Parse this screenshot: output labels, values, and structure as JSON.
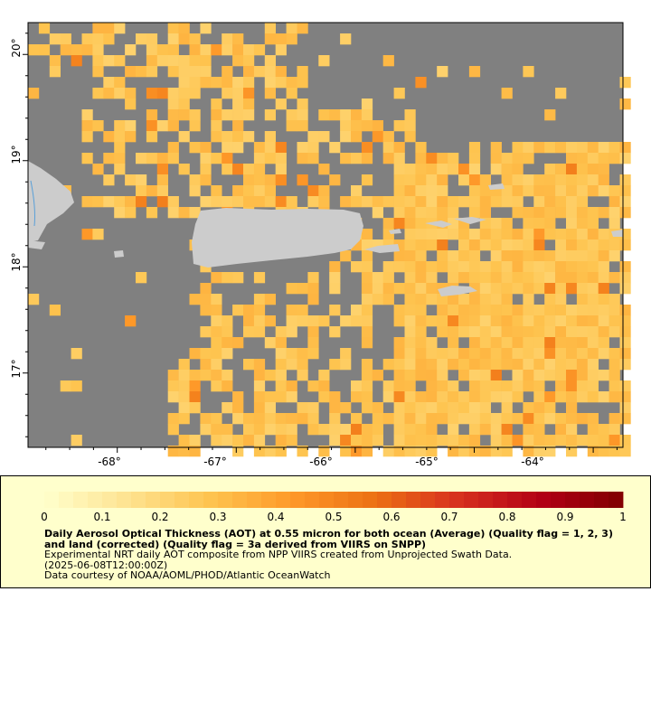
{
  "map": {
    "lon_range": [
      -68.75,
      -63.75
    ],
    "lat_range": [
      16.3,
      20.3
    ],
    "lon_ticks": [
      {
        "value": -68,
        "label": "-68°"
      },
      {
        "value": -67,
        "label": "-67°"
      },
      {
        "value": -66,
        "label": "-66°"
      },
      {
        "value": -65,
        "label": "-65°"
      },
      {
        "value": -64,
        "label": "-64°"
      }
    ],
    "lat_ticks": [
      {
        "value": 17,
        "label": "17°"
      },
      {
        "value": 18,
        "label": "18°"
      },
      {
        "value": 19,
        "label": "19°"
      },
      {
        "value": 20,
        "label": "20°"
      }
    ],
    "colors": {
      "no_data": "#808080",
      "land": "#cccccc",
      "water_line": "#5aa0d8",
      "legend_bg": "#ffffcc"
    }
  },
  "chart_data": {
    "type": "heatmap",
    "variable": "Daily Aerosol Optical Thickness (AOT) at 0.55 micron",
    "scale_range": [
      0,
      1
    ],
    "colormap": [
      "#ffffcc",
      "#fee391",
      "#fec44f",
      "#fe9929",
      "#ec7014",
      "#d7301f",
      "#b30015",
      "#7f0000"
    ]
  },
  "legend": {
    "tick_labels": [
      "0",
      "0.1",
      "0.2",
      "0.3",
      "0.4",
      "0.5",
      "0.6",
      "0.7",
      "0.8",
      "0.9",
      "1"
    ],
    "title": "Daily Aerosol Optical Thickness (AOT) at 0.55 micron for both ocean (Average) (Quality flag = 1, 2, 3) and land (corrected) (Quality flag = 3a derived from VIIRS on SNPP)",
    "line1": "Experimental NRT daily AOT composite from NPP VIIRS created from Unprojected Swath Data.",
    "line2": "(2025-06-08T12:00:00Z)",
    "line3": "Data courtesy of NOAA/AOML/PHOD/Atlantic OceanWatch"
  }
}
